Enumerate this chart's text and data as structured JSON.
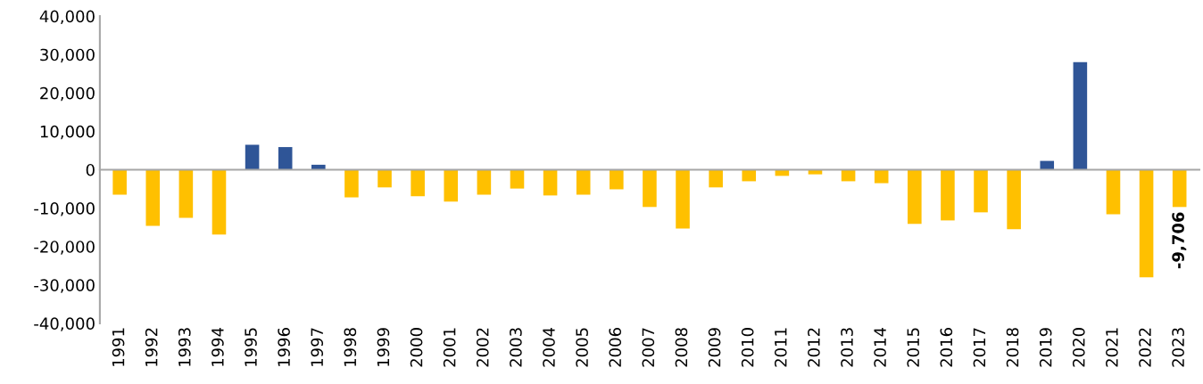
{
  "chart_data": {
    "type": "bar",
    "categories": [
      "1991",
      "1992",
      "1993",
      "1994",
      "1995",
      "1996",
      "1997",
      "1998",
      "1999",
      "2000",
      "2001",
      "2002",
      "2003",
      "2004",
      "2005",
      "2006",
      "2007",
      "2008",
      "2009",
      "2010",
      "2011",
      "2012",
      "2013",
      "2014",
      "2015",
      "2016",
      "2017",
      "2018",
      "2019",
      "2020",
      "2021",
      "2022",
      "2023"
    ],
    "values": [
      -6500,
      -14600,
      -12500,
      -16900,
      6500,
      5900,
      1300,
      -7200,
      -4600,
      -6900,
      -8300,
      -6500,
      -4900,
      -6700,
      -6500,
      -5100,
      -9700,
      -15300,
      -4600,
      -3000,
      -1600,
      -1200,
      -3000,
      -3500,
      -14100,
      -13200,
      -11100,
      -15500,
      2300,
      28000,
      -11600,
      -28000,
      -9706
    ],
    "colors": [
      "#ffc000",
      "#ffc000",
      "#ffc000",
      "#ffc000",
      "#2f5597",
      "#2f5597",
      "#2f5597",
      "#ffc000",
      "#ffc000",
      "#ffc000",
      "#ffc000",
      "#ffc000",
      "#ffc000",
      "#ffc000",
      "#ffc000",
      "#ffc000",
      "#ffc000",
      "#ffc000",
      "#ffc000",
      "#ffc000",
      "#ffc000",
      "#ffc000",
      "#ffc000",
      "#ffc000",
      "#ffc000",
      "#ffc000",
      "#ffc000",
      "#ffc000",
      "#2f5597",
      "#2f5597",
      "#ffc000",
      "#ffc000",
      "#ffc000"
    ],
    "value_labels": [
      null,
      null,
      null,
      null,
      null,
      null,
      null,
      null,
      null,
      null,
      null,
      null,
      null,
      null,
      null,
      null,
      null,
      null,
      null,
      null,
      null,
      null,
      null,
      null,
      null,
      null,
      null,
      null,
      null,
      null,
      null,
      null,
      "-9,706"
    ],
    "ylim": [
      -40000,
      40000
    ],
    "yticks": [
      {
        "value": -40000,
        "label": "-40,000"
      },
      {
        "value": -30000,
        "label": "-30,000"
      },
      {
        "value": -20000,
        "label": "-20,000"
      },
      {
        "value": -10000,
        "label": "-10,000"
      },
      {
        "value": 0,
        "label": "0"
      },
      {
        "value": 10000,
        "label": "10,000"
      },
      {
        "value": 20000,
        "label": "20,000"
      },
      {
        "value": 30000,
        "label": "30,000"
      },
      {
        "value": 40000,
        "label": "40,000"
      }
    ],
    "data_labels": false
  }
}
